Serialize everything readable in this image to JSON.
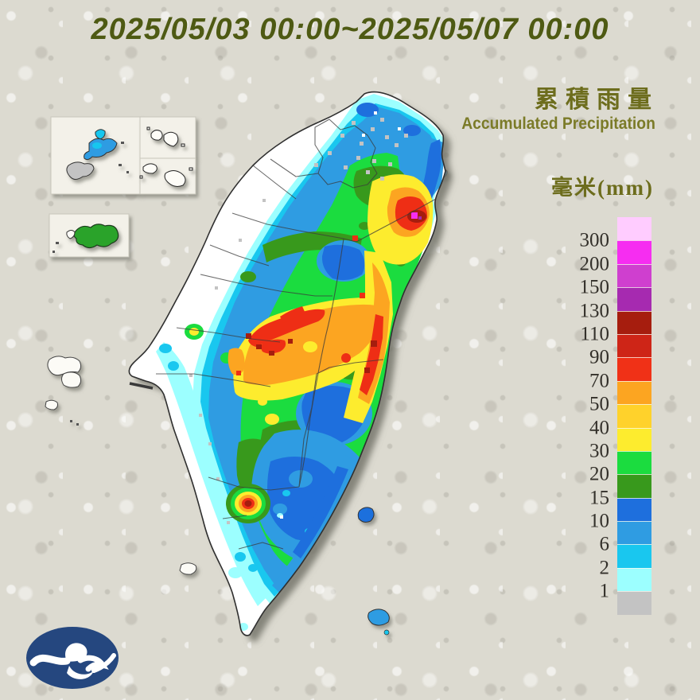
{
  "header": {
    "title": "2025/05/03 00:00~2025/05/07 00:00"
  },
  "legend": {
    "title_zh": "累積雨量",
    "title_en": "Accumulated Precipitation",
    "unit_label": "毫米(mm)",
    "scale": [
      {
        "label": "",
        "color": "#ffccff"
      },
      {
        "label": "300",
        "color": "#f62df1"
      },
      {
        "label": "200",
        "color": "#cf3fcf"
      },
      {
        "label": "150",
        "color": "#a62ab0"
      },
      {
        "label": "130",
        "color": "#a61d0e"
      },
      {
        "label": "110",
        "color": "#ce2517"
      },
      {
        "label": "90",
        "color": "#f03117"
      },
      {
        "label": "70",
        "color": "#fca521"
      },
      {
        "label": "50",
        "color": "#ffd22b"
      },
      {
        "label": "40",
        "color": "#fdec2e"
      },
      {
        "label": "30",
        "color": "#1bdc3f"
      },
      {
        "label": "20",
        "color": "#38991c"
      },
      {
        "label": "15",
        "color": "#1e6fdd"
      },
      {
        "label": "10",
        "color": "#2f9ce2"
      },
      {
        "label": "6",
        "color": "#19c7ef"
      },
      {
        "label": "2",
        "color": "#9cffff"
      },
      {
        "label": "1",
        "color": "#c3c3c3"
      }
    ]
  },
  "logo": {
    "name": "central-weather-bureau-cloud-logo",
    "background_color": "#25477f",
    "glyph_color": "#ffffff"
  }
}
